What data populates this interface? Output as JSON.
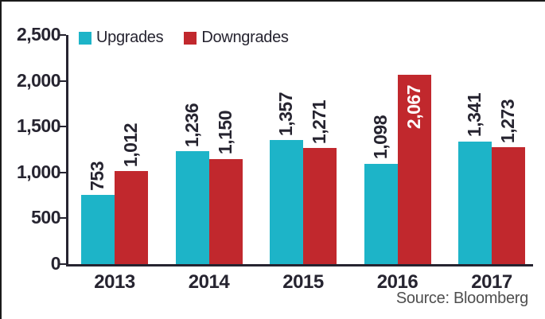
{
  "legend": {
    "items": [
      {
        "label": "Upgrades",
        "color": "#1db4c8"
      },
      {
        "label": "Downgrades",
        "color": "#c1282d"
      }
    ]
  },
  "source_note": "Source: Bloomberg",
  "colors": {
    "axis": "#262430",
    "text": "#262430",
    "inside_label": "#ffffff",
    "source_text": "#4f4f4f",
    "frame_border": "#1a1a1a"
  },
  "chart_data": {
    "type": "bar",
    "title": "",
    "xlabel": "",
    "ylabel": "",
    "categories": [
      "2013",
      "2014",
      "2015",
      "2016",
      "2017"
    ],
    "series": [
      {
        "name": "Upgrades",
        "color": "#1db4c8",
        "values": [
          753,
          1236,
          1357,
          1098,
          1341
        ],
        "labels": [
          "753",
          "1,236",
          "1,357",
          "1,098",
          "1,341"
        ]
      },
      {
        "name": "Downgrades",
        "color": "#c1282d",
        "values": [
          1012,
          1150,
          1271,
          2067,
          1273
        ],
        "labels": [
          "1,012",
          "1,150",
          "1,271",
          "2,067",
          "1,273"
        ]
      }
    ],
    "ylim": [
      0,
      2500
    ],
    "yticks": [
      0,
      500,
      1000,
      1500,
      2000,
      2500
    ],
    "ytick_labels": [
      "0",
      "500",
      "1,000",
      "1,500",
      "2,000",
      "2,500"
    ],
    "grid": false,
    "legend_position": "top-left",
    "bar_value_labels": "rotated-90",
    "source": "Source: Bloomberg"
  }
}
